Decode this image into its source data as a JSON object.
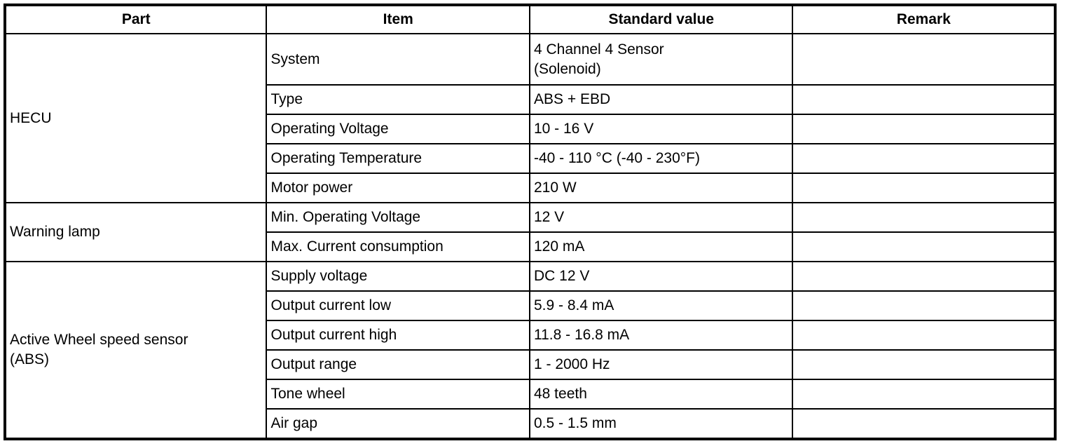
{
  "headers": [
    "Part",
    "Item",
    "Standard value",
    "Remark"
  ],
  "groups": [
    {
      "part": "HECU",
      "rows": [
        {
          "item": "System",
          "value_line1": "4 Channel 4 Sensor",
          "value_line2": "(Solenoid)",
          "remark": ""
        },
        {
          "item": "Type",
          "value": "ABS + EBD",
          "remark": ""
        },
        {
          "item": "Operating Voltage",
          "value": "10 - 16 V",
          "remark": ""
        },
        {
          "item": "Operating Temperature",
          "value": "-40 - 110 °C (-40 - 230°F)",
          "remark": ""
        },
        {
          "item": "Motor power",
          "value": "210 W",
          "remark": ""
        }
      ]
    },
    {
      "part": "Warning lamp",
      "rows": [
        {
          "item": "Min. Operating Voltage",
          "value": "12 V",
          "remark": ""
        },
        {
          "item": "Max. Current consumption",
          "value": "120 mA",
          "remark": ""
        }
      ]
    },
    {
      "part_line1": "Active Wheel speed sensor",
      "part_line2": "(ABS)",
      "rows": [
        {
          "item": "Supply voltage",
          "value": "DC 12 V",
          "remark": ""
        },
        {
          "item": "Output current low",
          "value": "5.9 - 8.4 mA",
          "remark": ""
        },
        {
          "item": "Output current high",
          "value": "11.8 - 16.8 mA",
          "remark": ""
        },
        {
          "item": "Output range",
          "value": "1 - 2000 Hz",
          "remark": ""
        },
        {
          "item": "Tone wheel",
          "value": "48 teeth",
          "remark": ""
        },
        {
          "item": "Air gap",
          "value": "0.5 - 1.5 mm",
          "remark": ""
        }
      ]
    }
  ]
}
